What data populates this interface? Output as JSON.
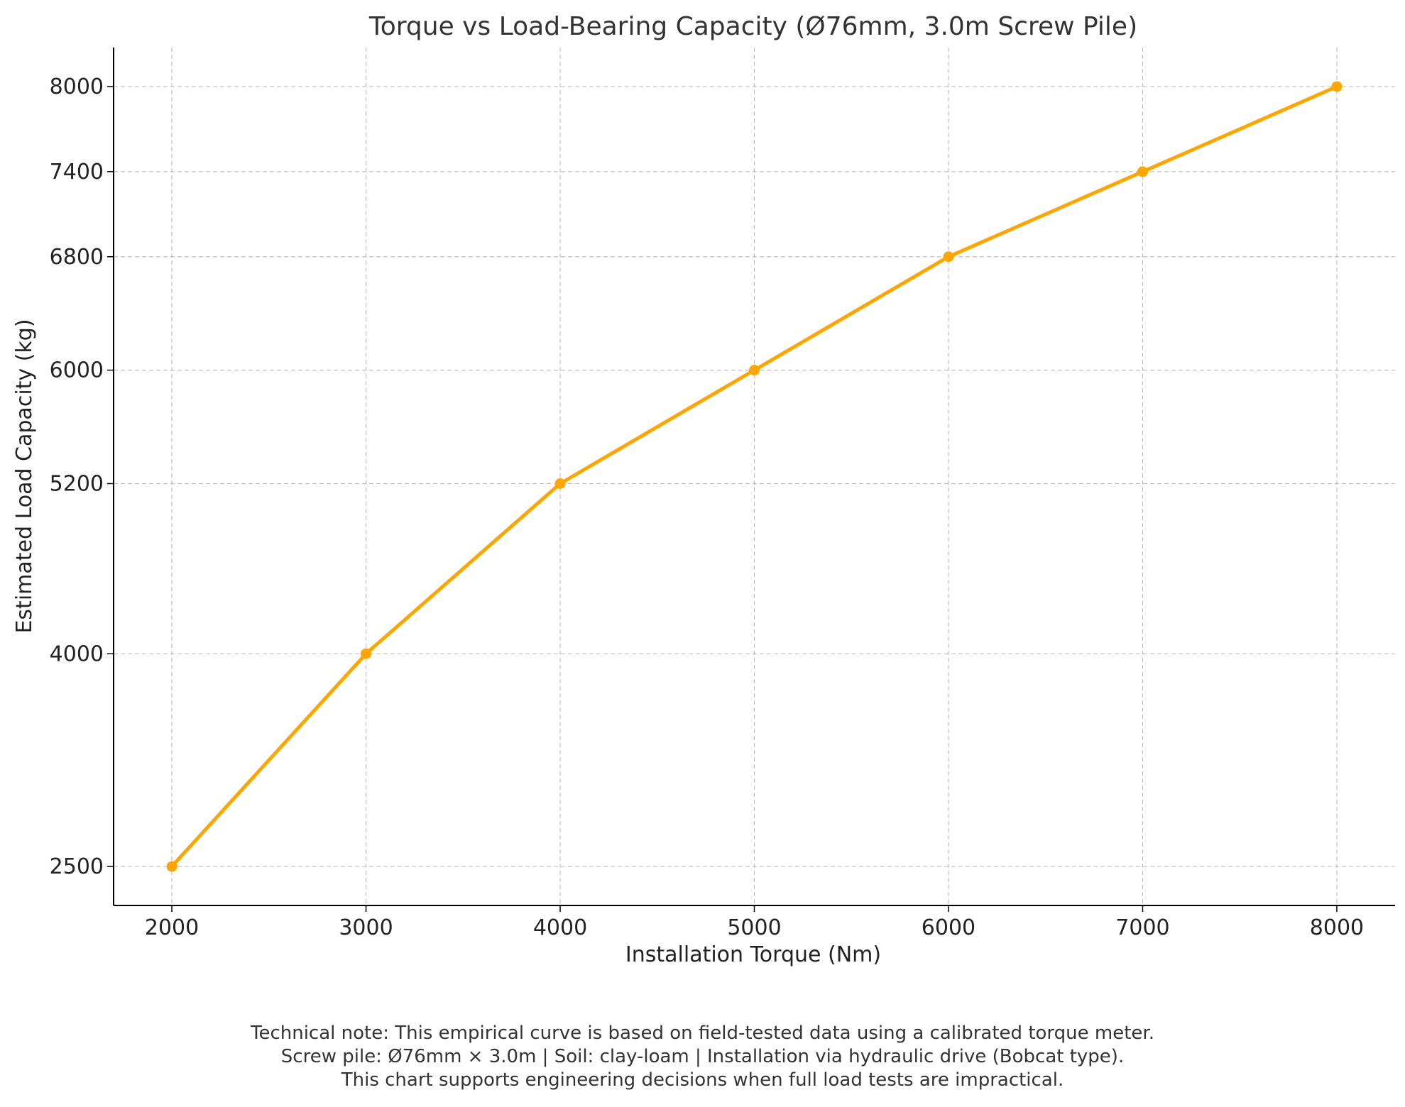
{
  "chart_data": {
    "type": "line",
    "title": "Torque vs Load-Bearing Capacity (Ø76mm, 3.0m Screw Pile)",
    "xlabel": "Installation Torque (Nm)",
    "ylabel": "Estimated Load Capacity (kg)",
    "x": [
      2000,
      3000,
      4000,
      5000,
      6000,
      7000,
      8000
    ],
    "series": [
      {
        "values": [
          2500,
          4000,
          5200,
          6000,
          6800,
          7400,
          8000
        ]
      }
    ],
    "xticks": [
      "2000",
      "3000",
      "4000",
      "5000",
      "6000",
      "7000",
      "8000"
    ],
    "yticks": [
      "2500",
      "4000",
      "5200",
      "6000",
      "6800",
      "7400",
      "8000"
    ],
    "xlim": [
      1700,
      8300
    ],
    "ylim": [
      2225,
      8275
    ],
    "grid": true,
    "color": "#ffa500",
    "marker": "circle"
  },
  "notes": [
    "Technical note: This empirical curve is based on field-tested data using a calibrated torque meter.",
    "Screw pile: Ø76mm × 3.0m | Soil: clay-loam | Installation via hydraulic drive (Bobcat type).",
    "This chart supports engineering decisions when full load tests are impractical."
  ]
}
